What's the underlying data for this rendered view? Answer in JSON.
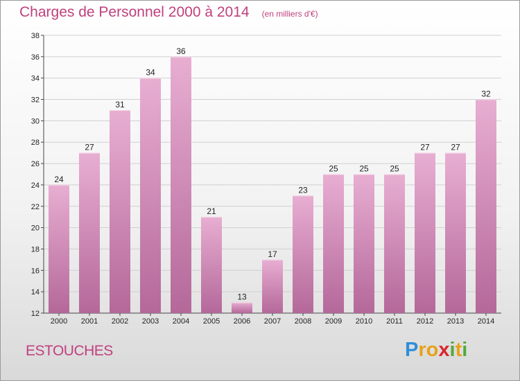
{
  "title": "Charges de Personnel 2000 à 2014",
  "subtitle": "(en milliers d'€)",
  "commune": "ESTOUCHES",
  "logo": {
    "text": "Proxiti",
    "letters": [
      {
        "char": "P",
        "color": "#2f8fd8"
      },
      {
        "char": "r",
        "color": "#e8a21a"
      },
      {
        "char": "o",
        "color": "#e8a21a"
      },
      {
        "char": "x",
        "color": "#d9262c"
      },
      {
        "char": "i",
        "color": "#55a83a"
      },
      {
        "char": "t",
        "color": "#e8a21a"
      },
      {
        "char": "i",
        "color": "#55a83a"
      }
    ]
  },
  "colors": {
    "accent": "#c0407e",
    "bar_top": "#e8aed2",
    "bar_bottom": "#b4689a",
    "grid": "#cfcfcf"
  },
  "chart_data": {
    "type": "bar",
    "categories": [
      "2000",
      "2001",
      "2002",
      "2003",
      "2004",
      "2005",
      "2006",
      "2007",
      "2008",
      "2009",
      "2010",
      "2011",
      "2012",
      "2013",
      "2014"
    ],
    "values": [
      24,
      27,
      31,
      34,
      36,
      21,
      13,
      17,
      23,
      25,
      25,
      25,
      27,
      27,
      32
    ],
    "ylim": [
      12,
      38
    ],
    "yticks": [
      12,
      14,
      16,
      18,
      20,
      22,
      24,
      26,
      28,
      30,
      32,
      34,
      36,
      38
    ],
    "grid": true,
    "title": "Charges de Personnel 2000 à 2014",
    "xlabel": "",
    "ylabel": ""
  }
}
